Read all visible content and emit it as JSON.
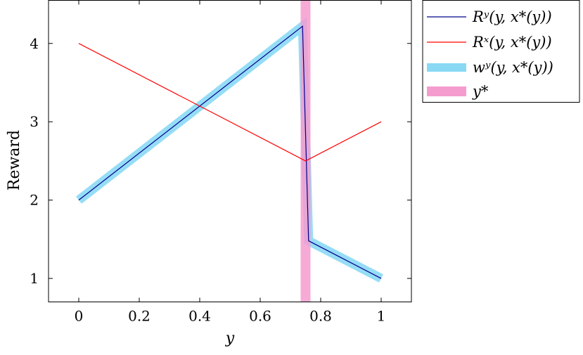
{
  "chart_data": {
    "type": "line",
    "xlabel": "y",
    "ylabel": "Reward",
    "xlim": [
      -0.1,
      1.1
    ],
    "ylim": [
      0.7,
      4.55
    ],
    "xticks": [
      0,
      0.2,
      0.4,
      0.6,
      0.8,
      1
    ],
    "xtick_labels": [
      "0",
      "0.2",
      "0.4",
      "0.6",
      "0.8",
      "1"
    ],
    "yticks": [
      1,
      2,
      3,
      4
    ],
    "ytick_labels": [
      "1",
      "2",
      "3",
      "4"
    ],
    "grid": false,
    "legend_position": "outside-top-right",
    "series": [
      {
        "name": "R^y(y, x*(y))",
        "label": "Rʸ(y, x*(y))",
        "color": "#00008b",
        "style": "line",
        "x": [
          0,
          0.74,
          0.76,
          1
        ],
        "y": [
          2.0,
          4.22,
          1.48,
          1.0
        ]
      },
      {
        "name": "R^x(y, x*(y))",
        "label": "Rˣ(y, x*(y))",
        "color": "#ff0000",
        "style": "line",
        "x": [
          0,
          0.75,
          1
        ],
        "y": [
          4.0,
          2.5,
          3.0
        ]
      },
      {
        "name": "w^y(y, x*(y))",
        "label": "wʸ(y, x*(y))",
        "color": "#89d9f5",
        "style": "thick-line",
        "x": [
          0,
          0.74,
          0.76,
          1
        ],
        "y": [
          2.0,
          4.22,
          1.48,
          1.0
        ]
      },
      {
        "name": "y*",
        "label": "y*",
        "color": "#f59ccf",
        "style": "vertical-band",
        "x": [
          0.75
        ]
      }
    ]
  }
}
